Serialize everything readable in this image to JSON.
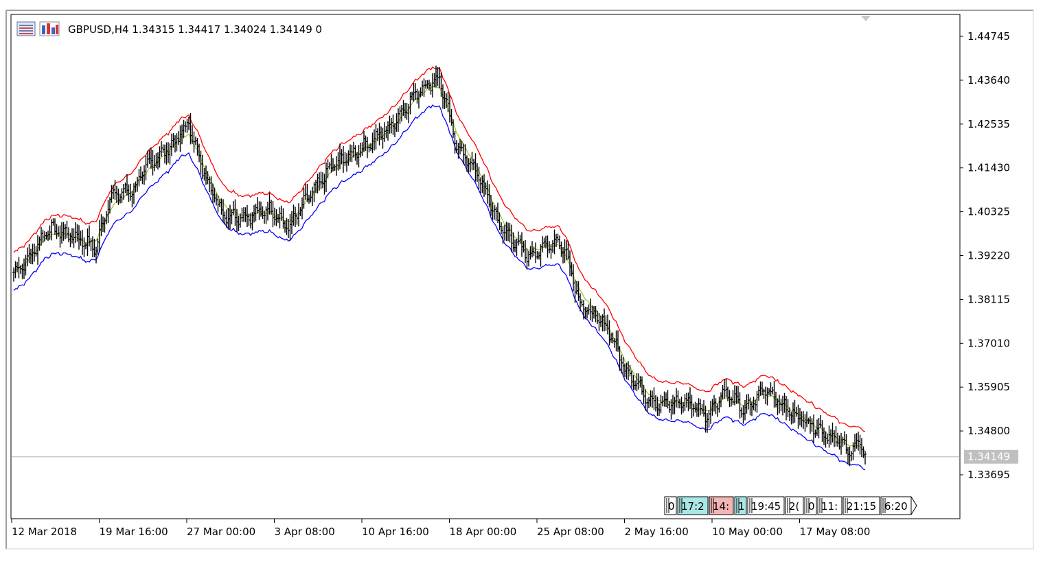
{
  "header": {
    "symbol_info": "GBPUSD,H4  1.34315 1.34417 1.34024 1.34149  0",
    "icons": [
      "chart-window-icon",
      "signal-icon"
    ]
  },
  "bottom_tags": [
    {
      "label": "0",
      "color": "#ffffff"
    },
    {
      "label": "17:2",
      "color": "#a9e7e7"
    },
    {
      "label": "14:",
      "color": "#f6b5b5"
    },
    {
      "label": "1",
      "color": "#a9e7e7"
    },
    {
      "label": "19:45",
      "color": "#ffffff"
    },
    {
      "label": "2(",
      "color": "#ffffff"
    },
    {
      "label": "0",
      "color": "#ffffff"
    },
    {
      "label": "11:",
      "color": "#ffffff"
    },
    {
      "label": "21:15",
      "color": "#ffffff"
    },
    {
      "label": "6:20",
      "color": "#ffffff"
    }
  ],
  "chart_data": {
    "type": "line",
    "title": "GBPUSD,H4",
    "ohlc_last": {
      "open": 1.34315,
      "high": 1.34417,
      "low": 1.34024,
      "close": 1.34149
    },
    "current_price": "1.34149",
    "ylim": [
      1.3304,
      1.453
    ],
    "y_ticks": [
      "1.44745",
      "1.43640",
      "1.42535",
      "1.41430",
      "1.40325",
      "1.39220",
      "1.38115",
      "1.37010",
      "1.35905",
      "1.34800",
      "1.33695"
    ],
    "x_ticks": [
      "12 Mar 2018",
      "19 Mar 16:00",
      "27 Mar 00:00",
      "3 Apr 08:00",
      "10 Apr 16:00",
      "18 Apr 00:00",
      "25 Apr 08:00",
      "2 May 16:00",
      "10 May 00:00",
      "17 May 08:00"
    ],
    "price_series_waypoints": [
      [
        0,
        1.388
      ],
      [
        8,
        1.391
      ],
      [
        20,
        1.399
      ],
      [
        36,
        1.397
      ],
      [
        48,
        1.394
      ],
      [
        56,
        1.407
      ],
      [
        70,
        1.409
      ],
      [
        78,
        1.415
      ],
      [
        92,
        1.42
      ],
      [
        102,
        1.4255
      ],
      [
        110,
        1.414
      ],
      [
        122,
        1.4025
      ],
      [
        136,
        1.402
      ],
      [
        150,
        1.404
      ],
      [
        160,
        1.399
      ],
      [
        170,
        1.406
      ],
      [
        186,
        1.415
      ],
      [
        200,
        1.4185
      ],
      [
        218,
        1.424
      ],
      [
        236,
        1.434
      ],
      [
        248,
        1.437
      ],
      [
        258,
        1.42
      ],
      [
        270,
        1.413
      ],
      [
        284,
        1.399
      ],
      [
        300,
        1.392
      ],
      [
        316,
        1.396
      ],
      [
        322,
        1.393
      ],
      [
        330,
        1.38
      ],
      [
        346,
        1.374
      ],
      [
        356,
        1.364
      ],
      [
        368,
        1.357
      ],
      [
        376,
        1.3545
      ],
      [
        392,
        1.3555
      ],
      [
        404,
        1.352
      ],
      [
        414,
        1.358
      ],
      [
        426,
        1.353
      ],
      [
        438,
        1.359
      ],
      [
        450,
        1.3535
      ],
      [
        462,
        1.3505
      ],
      [
        476,
        1.3465
      ],
      [
        488,
        1.343
      ],
      [
        494,
        1.345
      ],
      [
        496,
        1.3415
      ]
    ],
    "indicator_envelope_width": 0.0048,
    "series": [
      {
        "name": "",
        "color": "#ff0000",
        "role": "upper band"
      },
      {
        "name": "",
        "color": "#99cc33",
        "role": "middle line"
      },
      {
        "name": "",
        "color": "#0000ff",
        "role": "lower band"
      },
      {
        "name": "",
        "color": "#000000",
        "role": "price bars"
      }
    ],
    "grid": false
  }
}
